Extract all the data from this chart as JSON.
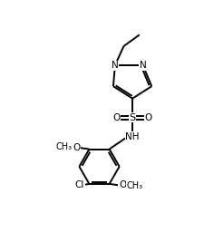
{
  "background_color": "#ffffff",
  "line_color": "#000000",
  "line_width": 1.4,
  "font_size": 7.5,
  "figsize": [
    2.25,
    2.67
  ],
  "dpi": 100,
  "xlim": [
    0,
    9
  ],
  "ylim": [
    0,
    10.68
  ]
}
